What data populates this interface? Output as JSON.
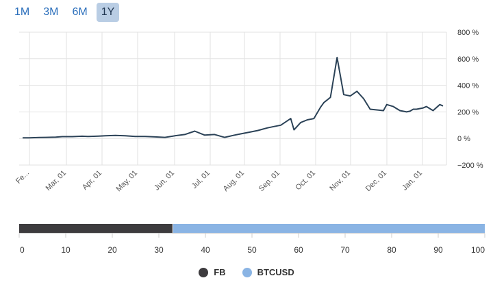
{
  "range_selector": {
    "buttons": [
      "1M",
      "3M",
      "6M",
      "1Y"
    ],
    "active": "1Y"
  },
  "chart_data": [
    {
      "type": "line",
      "y_axis_position": "right",
      "y_ticks": [
        "800 %",
        "600 %",
        "400 %",
        "200 %",
        "0 %",
        "−200 %"
      ],
      "ylim": [
        -200,
        800
      ],
      "grid": true,
      "x_tick_labels": [
        "Fe...",
        "Mar, 01",
        "Apr, 01",
        "May, 01",
        "Jun, 01",
        "Jul, 01",
        "Aug, 01",
        "Sep, 01",
        "Oct, 01",
        "Nov, 01",
        "Dec, 01",
        "Jan, 01"
      ],
      "line_color": "#2b4257",
      "series": [
        {
          "x": [
            0,
            2,
            5,
            7,
            10,
            12,
            15,
            18,
            20,
            23,
            25,
            28,
            31,
            34,
            37,
            40,
            43,
            46,
            49,
            52,
            55,
            58,
            61,
            64,
            66,
            68,
            71,
            74,
            76,
            78,
            81,
            82,
            84,
            86,
            88,
            90,
            91,
            93,
            95,
            97,
            99,
            101,
            103,
            105,
            107,
            109,
            110,
            112,
            113,
            114,
            116,
            117,
            118,
            119,
            121,
            122,
            124,
            126,
            127
          ],
          "y": [
            5,
            5,
            7,
            8,
            10,
            14,
            14,
            17,
            15,
            18,
            20,
            23,
            20,
            15,
            15,
            12,
            8,
            20,
            30,
            55,
            25,
            30,
            8,
            25,
            35,
            45,
            60,
            80,
            90,
            100,
            150,
            65,
            120,
            140,
            150,
            235,
            270,
            310,
            610,
            330,
            320,
            355,
            300,
            220,
            215,
            210,
            255,
            240,
            225,
            210,
            200,
            205,
            220,
            220,
            230,
            240,
            210,
            255,
            245
          ]
        }
      ]
    },
    {
      "type": "bar",
      "orientation": "horizontal",
      "stacked": true,
      "xlim": [
        0,
        100
      ],
      "x_ticks": [
        "0",
        "10",
        "20",
        "30",
        "40",
        "50",
        "60",
        "70",
        "80",
        "90",
        "100"
      ],
      "series": [
        {
          "name": "FB",
          "values": [
            33
          ],
          "color": "#3d3b3e"
        },
        {
          "name": "BTCUSD",
          "values": [
            67
          ],
          "color": "#8ab4e4"
        }
      ]
    }
  ],
  "legend": [
    {
      "name": "FB",
      "color": "#3d3b3e"
    },
    {
      "name": "BTCUSD",
      "color": "#8ab4e4"
    }
  ]
}
